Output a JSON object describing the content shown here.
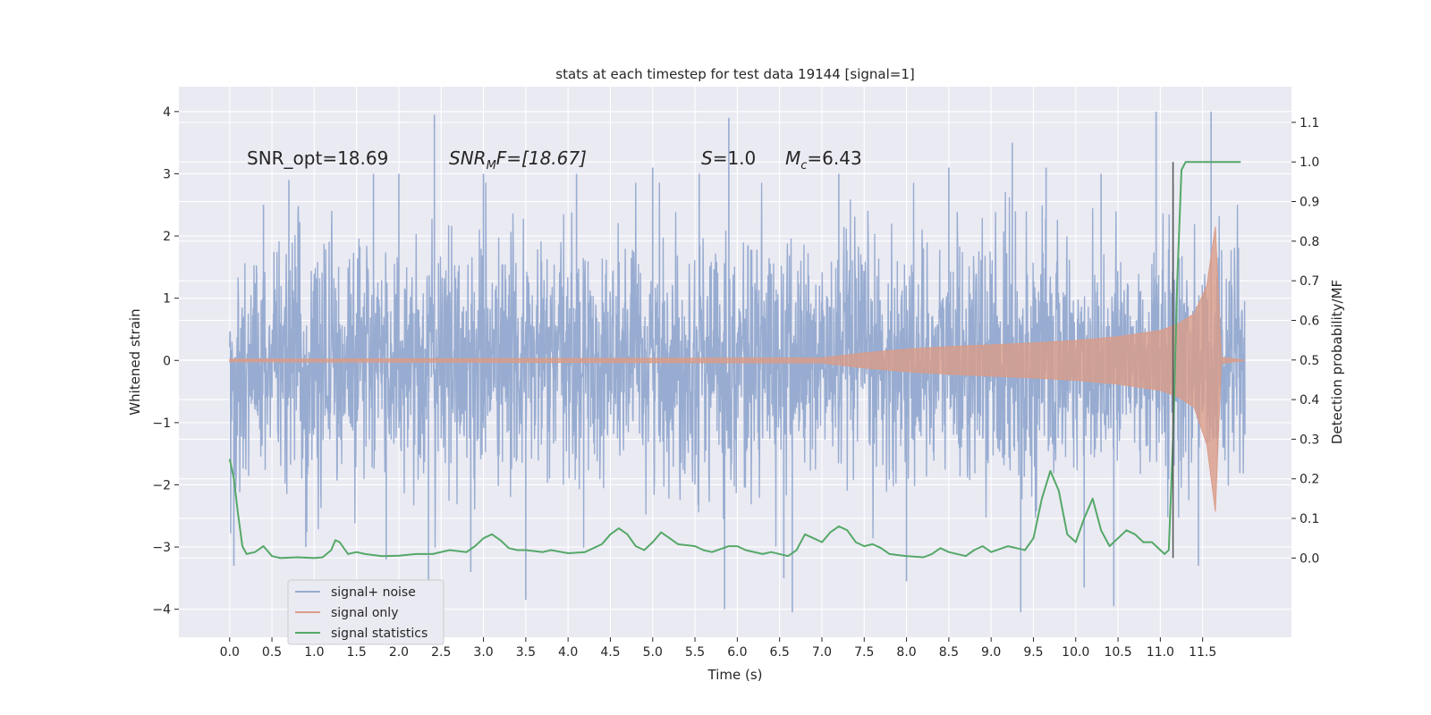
{
  "chart_data": {
    "type": "line",
    "title": "stats at each timestep for test data 19144 [signal=1]",
    "xlabel": "Time (s)",
    "ylabel_left": "Whitened strain",
    "ylabel_right": "Detection probability/MF",
    "xlim": [
      -0.6,
      12.55
    ],
    "ylim_left": [
      -4.45,
      4.4
    ],
    "ylim_right": [
      -0.2,
      1.19
    ],
    "x_ticks": [
      "0.0",
      "0.5",
      "1.0",
      "1.5",
      "2.0",
      "2.5",
      "3.0",
      "3.5",
      "4.0",
      "4.5",
      "5.0",
      "5.5",
      "6.0",
      "6.5",
      "7.0",
      "7.5",
      "8.0",
      "8.5",
      "9.0",
      "9.5",
      "10.0",
      "10.5",
      "11.0",
      "11.5"
    ],
    "y_ticks_left": [
      "4",
      "3",
      "2",
      "1",
      "0",
      "−1",
      "−2",
      "−3",
      "−4"
    ],
    "y_ticks_right": [
      "1.1",
      "1.0",
      "0.9",
      "0.8",
      "0.7",
      "0.6",
      "0.5",
      "0.4",
      "0.3",
      "0.2",
      "0.1",
      "0.0"
    ],
    "grid": true,
    "legend_placement": "lower-left",
    "annotations": {
      "snr_opt": "SNR_opt=18.69",
      "snr_mf_name": "SNR",
      "snr_mf_sub": "M",
      "snr_mf_rest": "F=[18.67]",
      "s_name": "S",
      "s_rest": "=1.0",
      "mc_name": "M",
      "mc_sub": "c",
      "mc_rest": "=6.43"
    },
    "colors": {
      "signal_noise": "#98acd1",
      "signal_only": "#d99c88",
      "statistics": "#55a868",
      "marker": "#555555",
      "background": "#eaeaf2"
    },
    "series": [
      {
        "name": "signal+ noise",
        "axis": "left",
        "x_range": [
          0.0,
          12.0
        ],
        "peaks": [
          [
            0.05,
            -3.3
          ],
          [
            0.4,
            2.5
          ],
          [
            0.7,
            2.9
          ],
          [
            0.9,
            -3.0
          ],
          [
            1.7,
            3.0
          ],
          [
            1.85,
            -3.2
          ],
          [
            2.0,
            3.0
          ],
          [
            2.35,
            -3.6
          ],
          [
            2.42,
            3.95
          ],
          [
            2.85,
            -3.4
          ],
          [
            3.0,
            3.0
          ],
          [
            3.5,
            -3.85
          ],
          [
            4.1,
            3.0
          ],
          [
            5.0,
            3.1
          ],
          [
            5.55,
            3.0
          ],
          [
            5.85,
            -4.0
          ],
          [
            5.9,
            3.9
          ],
          [
            6.55,
            -3.5
          ],
          [
            6.65,
            -4.05
          ],
          [
            7.2,
            3.0
          ],
          [
            8.0,
            -3.55
          ],
          [
            8.5,
            3.1
          ],
          [
            9.25,
            3.5
          ],
          [
            9.35,
            -4.05
          ],
          [
            9.65,
            3.1
          ],
          [
            10.1,
            -3.65
          ],
          [
            10.3,
            3.0
          ],
          [
            10.45,
            -3.95
          ],
          [
            10.95,
            4.0
          ],
          [
            11.45,
            -3.3
          ],
          [
            11.6,
            4.0
          ]
        ]
      },
      {
        "name": "signal only",
        "axis": "left",
        "x": [
          0.0,
          7.0,
          7.5,
          8.0,
          8.5,
          9.0,
          9.5,
          10.0,
          10.5,
          11.0,
          11.2,
          11.4,
          11.55,
          11.65,
          11.72,
          12.0
        ],
        "y": [
          0.02,
          0.04,
          0.12,
          0.18,
          0.22,
          0.25,
          0.28,
          0.32,
          0.38,
          0.48,
          0.58,
          0.75,
          1.2,
          2.15,
          0.05,
          0.0
        ]
      },
      {
        "name": "signal statistics",
        "axis": "right",
        "x": [
          0.0,
          0.05,
          0.1,
          0.15,
          0.2,
          0.3,
          0.4,
          0.5,
          0.6,
          0.8,
          1.0,
          1.1,
          1.2,
          1.25,
          1.3,
          1.4,
          1.5,
          1.6,
          1.8,
          2.0,
          2.2,
          2.4,
          2.6,
          2.8,
          2.9,
          3.0,
          3.1,
          3.2,
          3.3,
          3.4,
          3.5,
          3.7,
          3.8,
          4.0,
          4.2,
          4.4,
          4.5,
          4.6,
          4.7,
          4.8,
          4.9,
          5.0,
          5.1,
          5.2,
          5.3,
          5.5,
          5.6,
          5.7,
          5.9,
          6.0,
          6.1,
          6.3,
          6.4,
          6.6,
          6.7,
          6.8,
          6.9,
          7.0,
          7.1,
          7.2,
          7.3,
          7.4,
          7.5,
          7.6,
          7.7,
          7.8,
          8.0,
          8.2,
          8.3,
          8.4,
          8.5,
          8.7,
          8.8,
          8.9,
          9.0,
          9.2,
          9.4,
          9.5,
          9.6,
          9.7,
          9.8,
          9.9,
          10.0,
          10.1,
          10.2,
          10.3,
          10.4,
          10.5,
          10.6,
          10.7,
          10.8,
          10.9,
          11.0,
          11.05,
          11.1,
          11.15,
          11.2,
          11.25,
          11.3,
          11.4,
          11.6,
          11.8,
          11.95
        ],
        "y": [
          0.25,
          0.2,
          0.11,
          0.03,
          0.01,
          0.015,
          0.03,
          0.005,
          0.0,
          0.002,
          0.0,
          0.002,
          0.02,
          0.045,
          0.04,
          0.01,
          0.015,
          0.01,
          0.005,
          0.006,
          0.01,
          0.01,
          0.02,
          0.015,
          0.03,
          0.05,
          0.06,
          0.045,
          0.025,
          0.02,
          0.02,
          0.015,
          0.02,
          0.012,
          0.015,
          0.035,
          0.06,
          0.075,
          0.06,
          0.03,
          0.02,
          0.04,
          0.065,
          0.05,
          0.035,
          0.03,
          0.02,
          0.015,
          0.03,
          0.03,
          0.02,
          0.01,
          0.015,
          0.005,
          0.02,
          0.06,
          0.05,
          0.04,
          0.065,
          0.08,
          0.07,
          0.04,
          0.03,
          0.035,
          0.025,
          0.01,
          0.005,
          0.002,
          0.01,
          0.025,
          0.015,
          0.005,
          0.02,
          0.03,
          0.015,
          0.03,
          0.02,
          0.05,
          0.15,
          0.22,
          0.17,
          0.06,
          0.04,
          0.1,
          0.15,
          0.07,
          0.03,
          0.05,
          0.07,
          0.06,
          0.04,
          0.04,
          0.02,
          0.01,
          0.02,
          0.3,
          0.7,
          0.98,
          1.0,
          1.0,
          1.0,
          1.0,
          1.0
        ]
      }
    ],
    "marker_line": {
      "x": 11.15,
      "y_range": [
        0.0,
        1.0
      ],
      "axis": "right"
    }
  }
}
